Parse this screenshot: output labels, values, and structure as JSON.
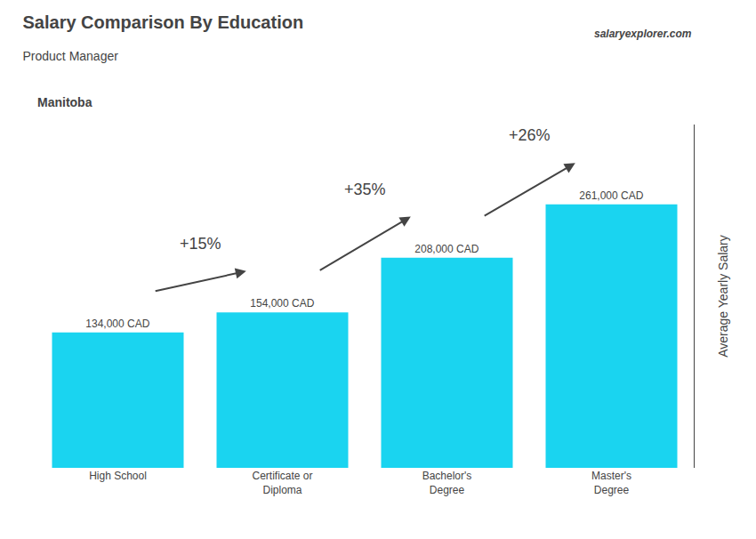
{
  "chart_data": {
    "type": "bar",
    "title": "Salary Comparison By Education",
    "subtitle": "Product Manager",
    "ylabel": "Average Yearly Salary",
    "categories": [
      "High School",
      "Certificate or\nDiploma",
      "Bachelor's\nDegree",
      "Master's\nDegree"
    ],
    "values": [
      134000,
      154000,
      208000,
      261000
    ],
    "value_labels": [
      "134,000 CAD",
      "154,000 CAD",
      "208,000 CAD",
      "261,000 CAD"
    ],
    "data_labels": true,
    "color": "#1ad4f0",
    "ylim": [
      0,
      340000
    ],
    "tick_labels": "x",
    "grid": false,
    "annotations": [
      {
        "text": "Manitoba"
      },
      {
        "text": "salaryexplorer.com"
      },
      {
        "text": "+15%",
        "from": "High School",
        "to": "Certificate or\nDiploma"
      },
      {
        "text": "+35%",
        "from": "Certificate or\nDiploma",
        "to": "Bachelor's\nDegree"
      },
      {
        "text": "+26%",
        "from": "Bachelor's\nDegree",
        "to": "Master's\nDegree"
      }
    ]
  }
}
